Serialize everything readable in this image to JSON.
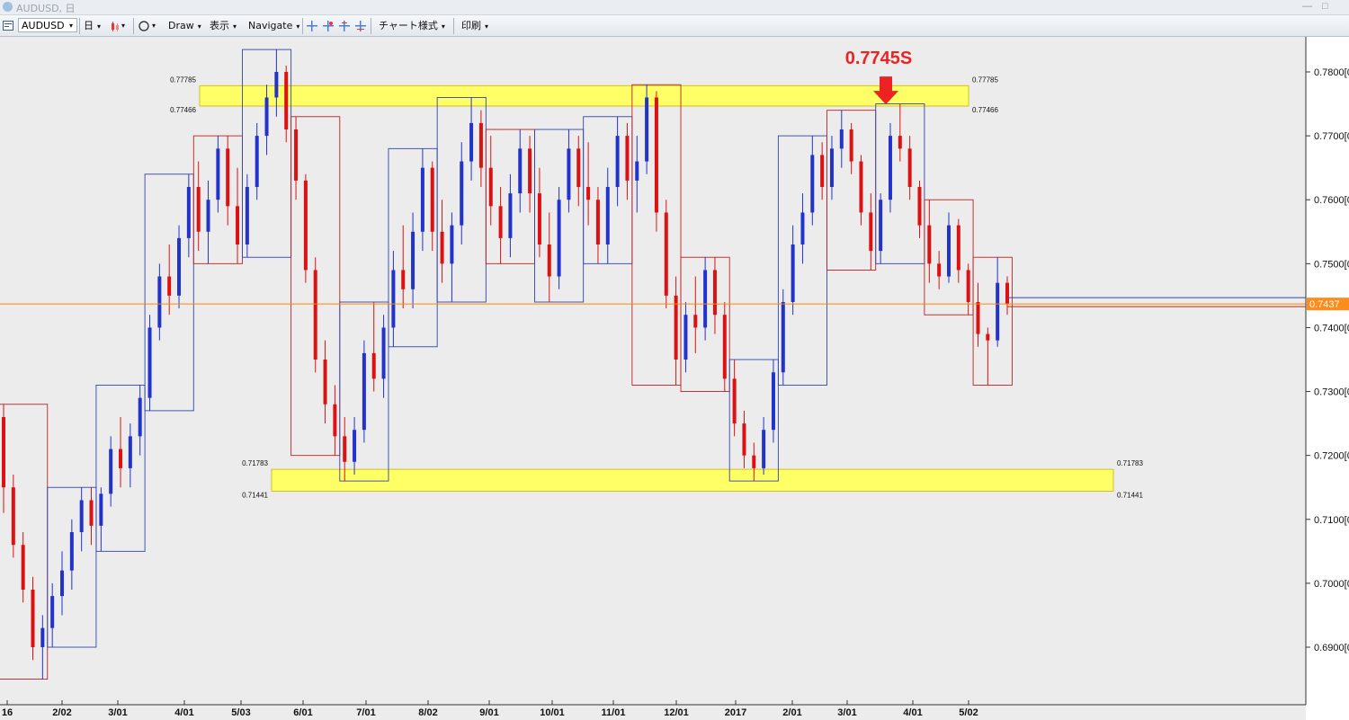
{
  "window": {
    "title": "AUDUSD, 日",
    "minimize_glyph": "—",
    "maximize_glyph": "□"
  },
  "toolbar": {
    "symbol": "AUDUSD",
    "timeframe": "日",
    "draw": "Draw",
    "view": "表示",
    "navigate": "Navigate",
    "chart_style": "チャート様式",
    "print": "印刷",
    "dropdown_glyph": "▾",
    "icons": [
      "chart-icon",
      "timeframe-icon",
      "candle-icon",
      "circle-icon",
      "crosshair-icon",
      "zoom-in-icon",
      "zoom-out-icon",
      "fit-icon"
    ]
  },
  "chart_data": {
    "type": "candlestick",
    "symbol": "AUDUSD",
    "ylim": [
      0.6815,
      0.7875
    ],
    "y_ticks": [
      0.78,
      0.77,
      0.76,
      0.75,
      0.74,
      0.73,
      0.72,
      0.71,
      0.7,
      0.69
    ],
    "y_tick_labels": [
      "0.7800[0",
      "0.7700[0",
      "0.7600[0",
      "0.7500[0",
      "0.7400[0",
      "0.7300[0",
      "0.7200[0",
      "0.7100[0",
      "0.7000[0",
      "0.6900[0"
    ],
    "x_tick_labels": [
      "16",
      "2/02",
      "3/01",
      "4/01",
      "5/03",
      "6/01",
      "7/01",
      "8/02",
      "9/01",
      "10/01",
      "11/01",
      "12/01",
      "2017",
      "2/01",
      "3/01",
      "4/01",
      "5/02"
    ],
    "current_price": 0.7437,
    "current_price_label": "0.7437",
    "colors": {
      "up": "#2233cc",
      "down": "#dd1111",
      "zone_fill": "#ffff66",
      "price_line": "#ff8800",
      "annotation": "#ee2222",
      "background": "#ececec"
    },
    "zones": [
      {
        "name": "resistance",
        "top": 0.77785,
        "bottom": 0.77466,
        "top_label": "0.77785",
        "bottom_label": "0.77466"
      },
      {
        "name": "support",
        "top": 0.71783,
        "bottom": 0.71441,
        "top_label": "0.71783",
        "bottom_label": "0.71441"
      }
    ],
    "annotation": {
      "text": "0.7745S",
      "price": 0.7745
    },
    "ohlc": [
      [
        0.726,
        0.728,
        0.711,
        0.715
      ],
      [
        0.715,
        0.717,
        0.704,
        0.706
      ],
      [
        0.706,
        0.708,
        0.697,
        0.699
      ],
      [
        0.699,
        0.701,
        0.688,
        0.69
      ],
      [
        0.69,
        0.695,
        0.685,
        0.693
      ],
      [
        0.693,
        0.7,
        0.69,
        0.698
      ],
      [
        0.698,
        0.705,
        0.695,
        0.702
      ],
      [
        0.702,
        0.71,
        0.699,
        0.708
      ],
      [
        0.708,
        0.715,
        0.705,
        0.713
      ],
      [
        0.713,
        0.715,
        0.706,
        0.709
      ],
      [
        0.709,
        0.715,
        0.705,
        0.714
      ],
      [
        0.714,
        0.723,
        0.712,
        0.721
      ],
      [
        0.721,
        0.726,
        0.715,
        0.718
      ],
      [
        0.718,
        0.725,
        0.715,
        0.723
      ],
      [
        0.723,
        0.731,
        0.72,
        0.729
      ],
      [
        0.729,
        0.742,
        0.727,
        0.74
      ],
      [
        0.74,
        0.75,
        0.738,
        0.748
      ],
      [
        0.748,
        0.753,
        0.742,
        0.745
      ],
      [
        0.745,
        0.756,
        0.743,
        0.754
      ],
      [
        0.754,
        0.764,
        0.751,
        0.762
      ],
      [
        0.762,
        0.766,
        0.752,
        0.755
      ],
      [
        0.755,
        0.763,
        0.75,
        0.76
      ],
      [
        0.76,
        0.77,
        0.758,
        0.768
      ],
      [
        0.768,
        0.77,
        0.756,
        0.759
      ],
      [
        0.759,
        0.765,
        0.75,
        0.753
      ],
      [
        0.753,
        0.764,
        0.751,
        0.762
      ],
      [
        0.762,
        0.772,
        0.76,
        0.77
      ],
      [
        0.77,
        0.778,
        0.767,
        0.776
      ],
      [
        0.776,
        0.7835,
        0.773,
        0.78
      ],
      [
        0.78,
        0.781,
        0.769,
        0.771
      ],
      [
        0.771,
        0.773,
        0.76,
        0.763
      ],
      [
        0.763,
        0.764,
        0.747,
        0.749
      ],
      [
        0.749,
        0.751,
        0.733,
        0.735
      ],
      [
        0.735,
        0.738,
        0.725,
        0.728
      ],
      [
        0.728,
        0.731,
        0.72,
        0.723
      ],
      [
        0.723,
        0.726,
        0.716,
        0.719
      ],
      [
        0.719,
        0.726,
        0.717,
        0.724
      ],
      [
        0.724,
        0.738,
        0.722,
        0.736
      ],
      [
        0.736,
        0.744,
        0.73,
        0.732
      ],
      [
        0.732,
        0.742,
        0.729,
        0.74
      ],
      [
        0.74,
        0.752,
        0.737,
        0.749
      ],
      [
        0.749,
        0.756,
        0.743,
        0.746
      ],
      [
        0.746,
        0.758,
        0.743,
        0.755
      ],
      [
        0.755,
        0.768,
        0.752,
        0.765
      ],
      [
        0.765,
        0.766,
        0.752,
        0.755
      ],
      [
        0.755,
        0.76,
        0.747,
        0.75
      ],
      [
        0.75,
        0.758,
        0.744,
        0.756
      ],
      [
        0.756,
        0.769,
        0.753,
        0.766
      ],
      [
        0.766,
        0.776,
        0.763,
        0.772
      ],
      [
        0.772,
        0.774,
        0.762,
        0.765
      ],
      [
        0.765,
        0.77,
        0.756,
        0.759
      ],
      [
        0.759,
        0.762,
        0.75,
        0.754
      ],
      [
        0.754,
        0.764,
        0.751,
        0.761
      ],
      [
        0.761,
        0.771,
        0.758,
        0.768
      ],
      [
        0.768,
        0.77,
        0.758,
        0.761
      ],
      [
        0.761,
        0.765,
        0.751,
        0.753
      ],
      [
        0.753,
        0.758,
        0.744,
        0.748
      ],
      [
        0.748,
        0.762,
        0.746,
        0.76
      ],
      [
        0.76,
        0.771,
        0.758,
        0.768
      ],
      [
        0.768,
        0.77,
        0.759,
        0.762
      ],
      [
        0.762,
        0.769,
        0.756,
        0.76
      ],
      [
        0.76,
        0.762,
        0.75,
        0.753
      ],
      [
        0.753,
        0.765,
        0.75,
        0.762
      ],
      [
        0.762,
        0.773,
        0.759,
        0.77
      ],
      [
        0.77,
        0.772,
        0.76,
        0.763
      ],
      [
        0.763,
        0.77,
        0.758,
        0.766
      ],
      [
        0.766,
        0.778,
        0.764,
        0.776
      ],
      [
        0.776,
        0.777,
        0.755,
        0.758
      ],
      [
        0.758,
        0.76,
        0.743,
        0.745
      ],
      [
        0.745,
        0.748,
        0.731,
        0.735
      ],
      [
        0.735,
        0.744,
        0.733,
        0.742
      ],
      [
        0.742,
        0.748,
        0.736,
        0.74
      ],
      [
        0.74,
        0.751,
        0.738,
        0.749
      ],
      [
        0.749,
        0.751,
        0.739,
        0.742
      ],
      [
        0.742,
        0.744,
        0.73,
        0.732
      ],
      [
        0.732,
        0.735,
        0.723,
        0.725
      ],
      [
        0.725,
        0.727,
        0.718,
        0.72
      ],
      [
        0.72,
        0.722,
        0.716,
        0.718
      ],
      [
        0.718,
        0.726,
        0.717,
        0.724
      ],
      [
        0.724,
        0.735,
        0.722,
        0.733
      ],
      [
        0.733,
        0.746,
        0.731,
        0.744
      ],
      [
        0.744,
        0.756,
        0.742,
        0.753
      ],
      [
        0.753,
        0.761,
        0.75,
        0.758
      ],
      [
        0.758,
        0.77,
        0.756,
        0.767
      ],
      [
        0.767,
        0.769,
        0.76,
        0.762
      ],
      [
        0.762,
        0.77,
        0.76,
        0.768
      ],
      [
        0.768,
        0.774,
        0.765,
        0.771
      ],
      [
        0.771,
        0.772,
        0.764,
        0.766
      ],
      [
        0.766,
        0.767,
        0.756,
        0.758
      ],
      [
        0.758,
        0.761,
        0.749,
        0.752
      ],
      [
        0.752,
        0.761,
        0.75,
        0.76
      ],
      [
        0.76,
        0.772,
        0.758,
        0.77
      ],
      [
        0.77,
        0.775,
        0.766,
        0.768
      ],
      [
        0.768,
        0.77,
        0.76,
        0.762
      ],
      [
        0.762,
        0.763,
        0.754,
        0.756
      ],
      [
        0.756,
        0.76,
        0.747,
        0.75
      ],
      [
        0.75,
        0.752,
        0.746,
        0.748
      ],
      [
        0.748,
        0.758,
        0.747,
        0.756
      ],
      [
        0.756,
        0.757,
        0.747,
        0.749
      ],
      [
        0.749,
        0.75,
        0.742,
        0.744
      ],
      [
        0.744,
        0.747,
        0.737,
        0.739
      ],
      [
        0.739,
        0.74,
        0.731,
        0.738
      ],
      [
        0.738,
        0.751,
        0.737,
        0.747
      ],
      [
        0.747,
        0.748,
        0.742,
        0.7437
      ]
    ]
  }
}
